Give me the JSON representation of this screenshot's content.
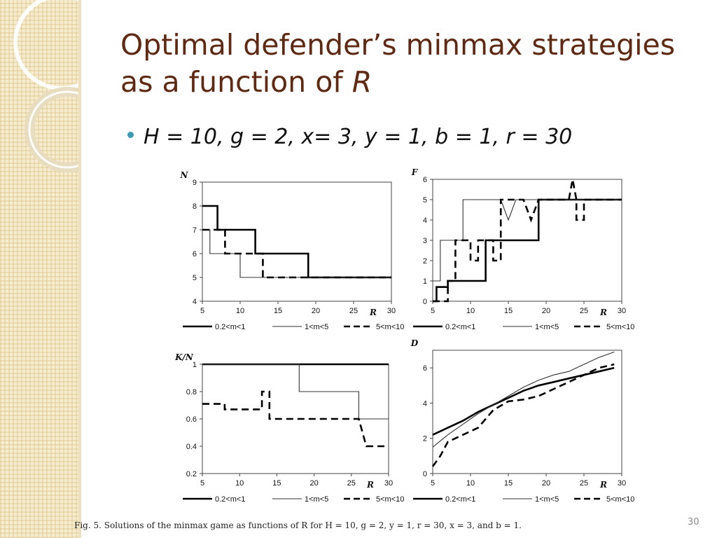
{
  "slide": {
    "title_main": "Optimal defender’s minmax strategies as a function of ",
    "title_var": "R",
    "bullet": "H = 10, g = 2, x= 3, y = 1, b = 1, r = 30",
    "caption": "Fig. 5.   Solutions of the minmax game as functions of R for H = 10, g = 2, y = 1, r = 30, x = 3, and b = 1.",
    "slide_number": "30"
  },
  "colors": {
    "title": "#5e2a14",
    "bullet": "#3d9bb3",
    "sidebar": "#f6eccf",
    "ink": "#000000"
  },
  "chart_data": [
    {
      "type": "line",
      "ylabel": "N",
      "xlabel": "R",
      "xlim": [
        5,
        30
      ],
      "ylim": [
        4,
        9
      ],
      "xticks": [
        5,
        10,
        15,
        20,
        25,
        30
      ],
      "yticks": [
        4,
        5,
        6,
        7,
        8,
        9
      ],
      "series": [
        {
          "name": "0.2<m<1",
          "style": "thick",
          "x": [
            5,
            7,
            7,
            12,
            12,
            19,
            19,
            30
          ],
          "y": [
            8,
            8,
            7,
            7,
            6,
            6,
            5,
            5
          ]
        },
        {
          "name": "1<m<5",
          "style": "thin",
          "x": [
            5,
            6,
            6,
            10,
            10,
            30
          ],
          "y": [
            7,
            7,
            6,
            6,
            5,
            5
          ]
        },
        {
          "name": "5<m<10",
          "style": "dashed",
          "x": [
            5,
            8,
            8,
            13,
            13,
            30
          ],
          "y": [
            7,
            7,
            6,
            6,
            5,
            5
          ]
        }
      ]
    },
    {
      "type": "line",
      "ylabel": "F",
      "xlabel": "R",
      "xlim": [
        5,
        30
      ],
      "ylim": [
        0,
        6
      ],
      "xticks": [
        5,
        10,
        15,
        20,
        25,
        30
      ],
      "yticks": [
        0,
        1,
        2,
        3,
        4,
        5,
        6
      ],
      "series": [
        {
          "name": "0.2<m<1",
          "style": "thick",
          "x": [
            5,
            5.5,
            5.5,
            7,
            7,
            12,
            12,
            19,
            19,
            30
          ],
          "y": [
            0,
            0,
            0.7,
            0.7,
            1,
            1,
            3,
            3,
            5,
            5
          ]
        },
        {
          "name": "1<m<5",
          "style": "thin",
          "x": [
            5,
            6,
            6,
            9,
            9,
            12,
            12,
            14,
            15,
            16,
            17,
            30
          ],
          "y": [
            1,
            1,
            3,
            3,
            5,
            5,
            5,
            5,
            4,
            5,
            5,
            5
          ]
        },
        {
          "name": "5<m<10",
          "style": "dashed",
          "x": [
            5,
            7,
            7,
            8,
            8,
            10,
            10,
            11,
            11,
            13,
            13,
            14,
            14,
            17,
            18,
            19,
            21,
            23,
            23.5,
            24,
            24,
            25,
            25,
            30
          ],
          "y": [
            0,
            0,
            1,
            1,
            3,
            3,
            2,
            2,
            3,
            3,
            2,
            2,
            5,
            5,
            4,
            5,
            5,
            5,
            6,
            5,
            4,
            4,
            5,
            5
          ]
        }
      ]
    },
    {
      "type": "line",
      "ylabel": "K/N",
      "xlabel": "R",
      "xlim": [
        5,
        30
      ],
      "ylim": [
        0.2,
        1.0
      ],
      "xticks": [
        5,
        10,
        15,
        20,
        25,
        30
      ],
      "yticks": [
        0.2,
        0.4,
        0.6,
        0.8,
        1
      ],
      "series": [
        {
          "name": "0.2<m<1",
          "style": "thick",
          "x": [
            5,
            30
          ],
          "y": [
            1,
            1
          ]
        },
        {
          "name": "1<m<5",
          "style": "thin",
          "x": [
            5,
            18,
            18,
            26,
            26,
            30
          ],
          "y": [
            1,
            1,
            0.8,
            0.8,
            0.6,
            0.6
          ]
        },
        {
          "name": "5<m<10",
          "style": "dashed",
          "x": [
            5,
            8,
            8,
            13,
            13,
            14,
            14,
            26,
            26,
            27,
            27,
            30
          ],
          "y": [
            0.71,
            0.71,
            0.67,
            0.67,
            0.8,
            0.8,
            0.6,
            0.6,
            0.6,
            0.4,
            0.4,
            0.4
          ]
        }
      ]
    },
    {
      "type": "line",
      "ylabel": "D",
      "xlabel": "R",
      "xlim": [
        5,
        30
      ],
      "ylim": [
        0,
        7
      ],
      "xticks": [
        5,
        10,
        15,
        20,
        25,
        30
      ],
      "yticks": [
        0,
        2,
        4,
        6
      ],
      "series": [
        {
          "name": "0.2<m<1",
          "style": "thick",
          "x": [
            5,
            7,
            9,
            11,
            13,
            15,
            17,
            19,
            21,
            23,
            25,
            27,
            29
          ],
          "y": [
            2.2,
            2.6,
            3.0,
            3.5,
            3.9,
            4.3,
            4.7,
            5.0,
            5.2,
            5.4,
            5.6,
            5.8,
            6.0
          ]
        },
        {
          "name": "1<m<5",
          "style": "thin",
          "x": [
            5,
            7,
            9,
            11,
            13,
            15,
            17,
            19,
            21,
            23,
            25,
            27,
            29
          ],
          "y": [
            1.5,
            2.2,
            2.8,
            3.4,
            3.9,
            4.4,
            4.9,
            5.3,
            5.6,
            5.8,
            6.2,
            6.6,
            6.9
          ]
        },
        {
          "name": "5<m<10",
          "style": "dashed",
          "x": [
            5,
            6,
            7,
            9,
            11,
            13,
            15,
            17,
            19,
            21,
            23,
            25,
            27,
            29
          ],
          "y": [
            0.4,
            1.0,
            1.8,
            2.2,
            2.6,
            3.6,
            4.1,
            4.2,
            4.4,
            4.8,
            5.2,
            5.6,
            6.0,
            6.2
          ]
        }
      ]
    }
  ]
}
